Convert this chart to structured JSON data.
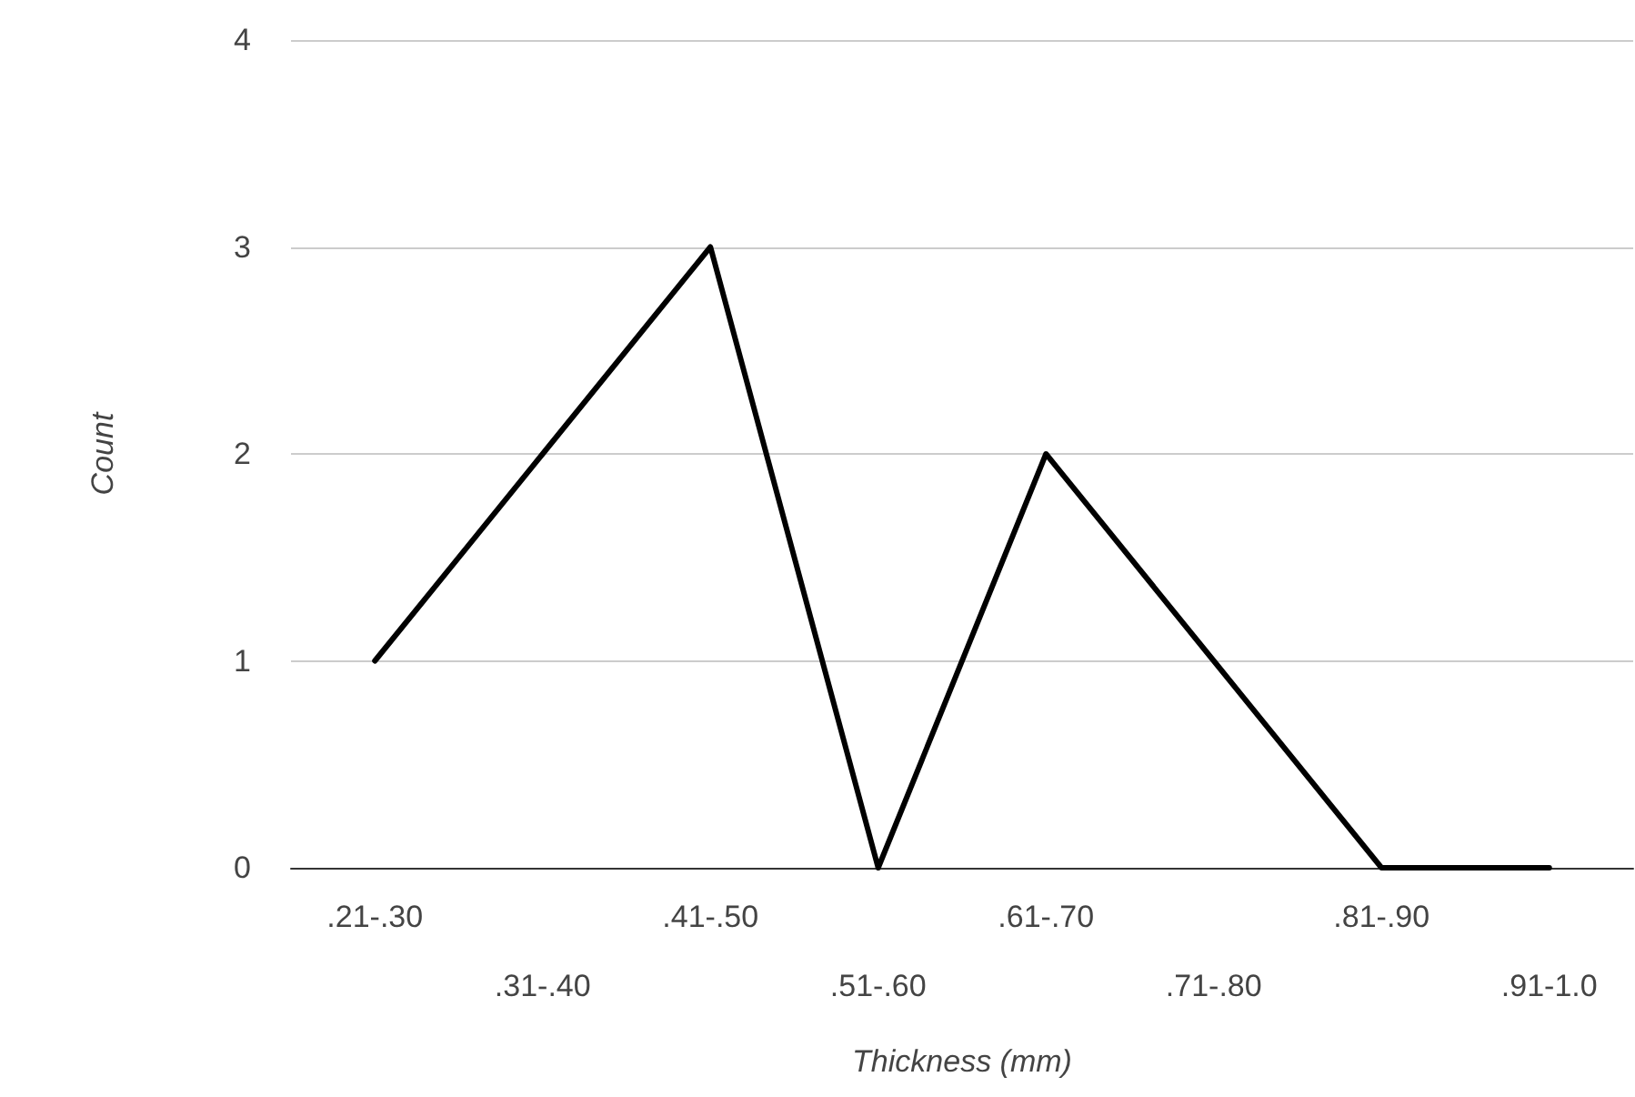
{
  "chart_data": {
    "type": "line",
    "xlabel": "Thickness (mm)",
    "ylabel": "Count",
    "categories": [
      ".21-.30",
      ".31-.40",
      ".41-.50",
      ".51-.60",
      ".61-.70",
      ".71-.80",
      ".81-.90",
      ".91-1.0"
    ],
    "values": [
      1,
      2,
      3,
      0,
      2,
      1,
      0,
      0
    ],
    "color": "#000000",
    "ylim": [
      0,
      4
    ],
    "yticks": [
      0,
      1,
      2,
      3,
      4
    ],
    "grid": "y",
    "marker": "none",
    "line_style": "solid"
  }
}
